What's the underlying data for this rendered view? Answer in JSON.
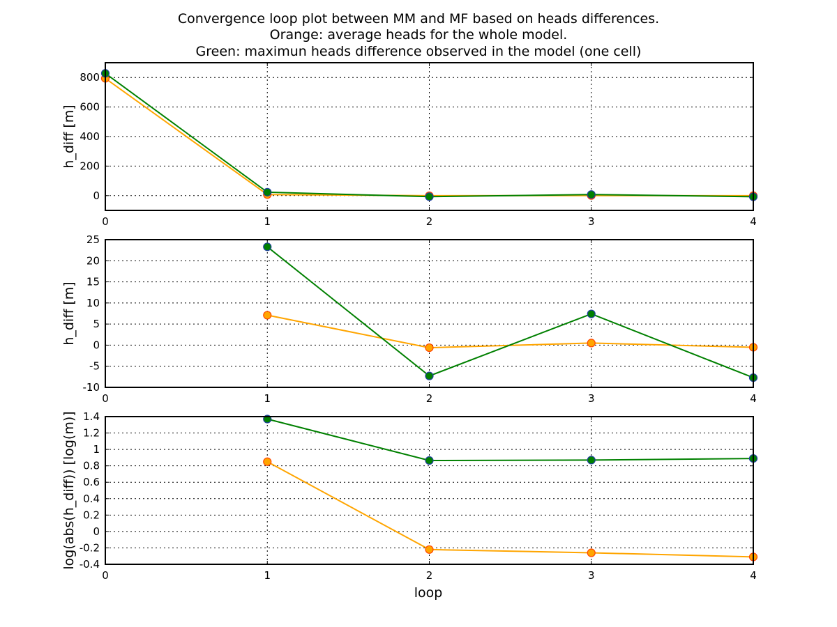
{
  "figure": {
    "title_lines": [
      "Convergence loop plot between MM and MF based on heads differences.",
      "Orange: average heads for the whole model.",
      "Green: maximun heads difference observed in the model (one cell)"
    ],
    "xlabel": "loop"
  },
  "colors": {
    "orange": "#ffa500",
    "green": "#008000",
    "marker_edge_orange": "#ff4500",
    "marker_edge_green": "#1f3f9f"
  },
  "chart_data": [
    {
      "type": "line",
      "ylabel": "h_diff [m]",
      "xlim": [
        0,
        4
      ],
      "ylim": [
        -100,
        900
      ],
      "xticks": [
        0,
        1,
        2,
        3,
        4
      ],
      "xtick_labels": [
        "0",
        "1",
        "2",
        "3",
        "4"
      ],
      "yticks": [
        0,
        200,
        400,
        600,
        800
      ],
      "ytick_labels": [
        "0",
        "200",
        "400",
        "600",
        "800"
      ],
      "grid": true,
      "series": [
        {
          "color": "orange",
          "x": [
            0,
            1,
            2,
            3,
            4
          ],
          "y": [
            794,
            7.1,
            -0.6,
            0.5,
            -0.5
          ]
        },
        {
          "color": "green",
          "x": [
            0,
            1,
            2,
            3,
            4
          ],
          "y": [
            828,
            23.3,
            -7.3,
            7.4,
            -7.7
          ]
        }
      ]
    },
    {
      "type": "line",
      "ylabel": "h_diff [m]",
      "xlim": [
        0,
        4
      ],
      "ylim": [
        -10,
        25
      ],
      "xticks": [
        0,
        1,
        2,
        3,
        4
      ],
      "xtick_labels": [
        "0",
        "1",
        "2",
        "3",
        "4"
      ],
      "yticks": [
        -10,
        -5,
        0,
        5,
        10,
        15,
        20,
        25
      ],
      "ytick_labels": [
        "-10",
        "-5",
        "0",
        "5",
        "10",
        "15",
        "20",
        "25"
      ],
      "grid": true,
      "series": [
        {
          "color": "orange",
          "x": [
            1,
            2,
            3,
            4
          ],
          "y": [
            7.1,
            -0.6,
            0.5,
            -0.5
          ]
        },
        {
          "color": "green",
          "x": [
            1,
            2,
            3,
            4
          ],
          "y": [
            23.3,
            -7.3,
            7.4,
            -7.7
          ]
        }
      ]
    },
    {
      "type": "line",
      "ylabel": "log(abs(h_diff)) [log(m)]",
      "xlim": [
        0,
        4
      ],
      "ylim": [
        -0.4,
        1.4
      ],
      "xticks": [
        0,
        1,
        2,
        3,
        4
      ],
      "xtick_labels": [
        "0",
        "1",
        "2",
        "3",
        "4"
      ],
      "yticks": [
        -0.4,
        -0.2,
        0,
        0.2,
        0.4,
        0.6,
        0.8,
        1,
        1.2,
        1.4
      ],
      "ytick_labels": [
        "-0.4",
        "-0.2",
        "0",
        "0.2",
        "0.4",
        "0.6",
        "0.8",
        "1",
        "1.2",
        "1.4"
      ],
      "grid": true,
      "series": [
        {
          "color": "orange",
          "x": [
            1,
            2,
            3,
            4
          ],
          "y": [
            0.85,
            -0.22,
            -0.26,
            -0.31
          ]
        },
        {
          "color": "green",
          "x": [
            1,
            2,
            3,
            4
          ],
          "y": [
            1.37,
            0.865,
            0.87,
            0.89
          ]
        }
      ]
    }
  ]
}
